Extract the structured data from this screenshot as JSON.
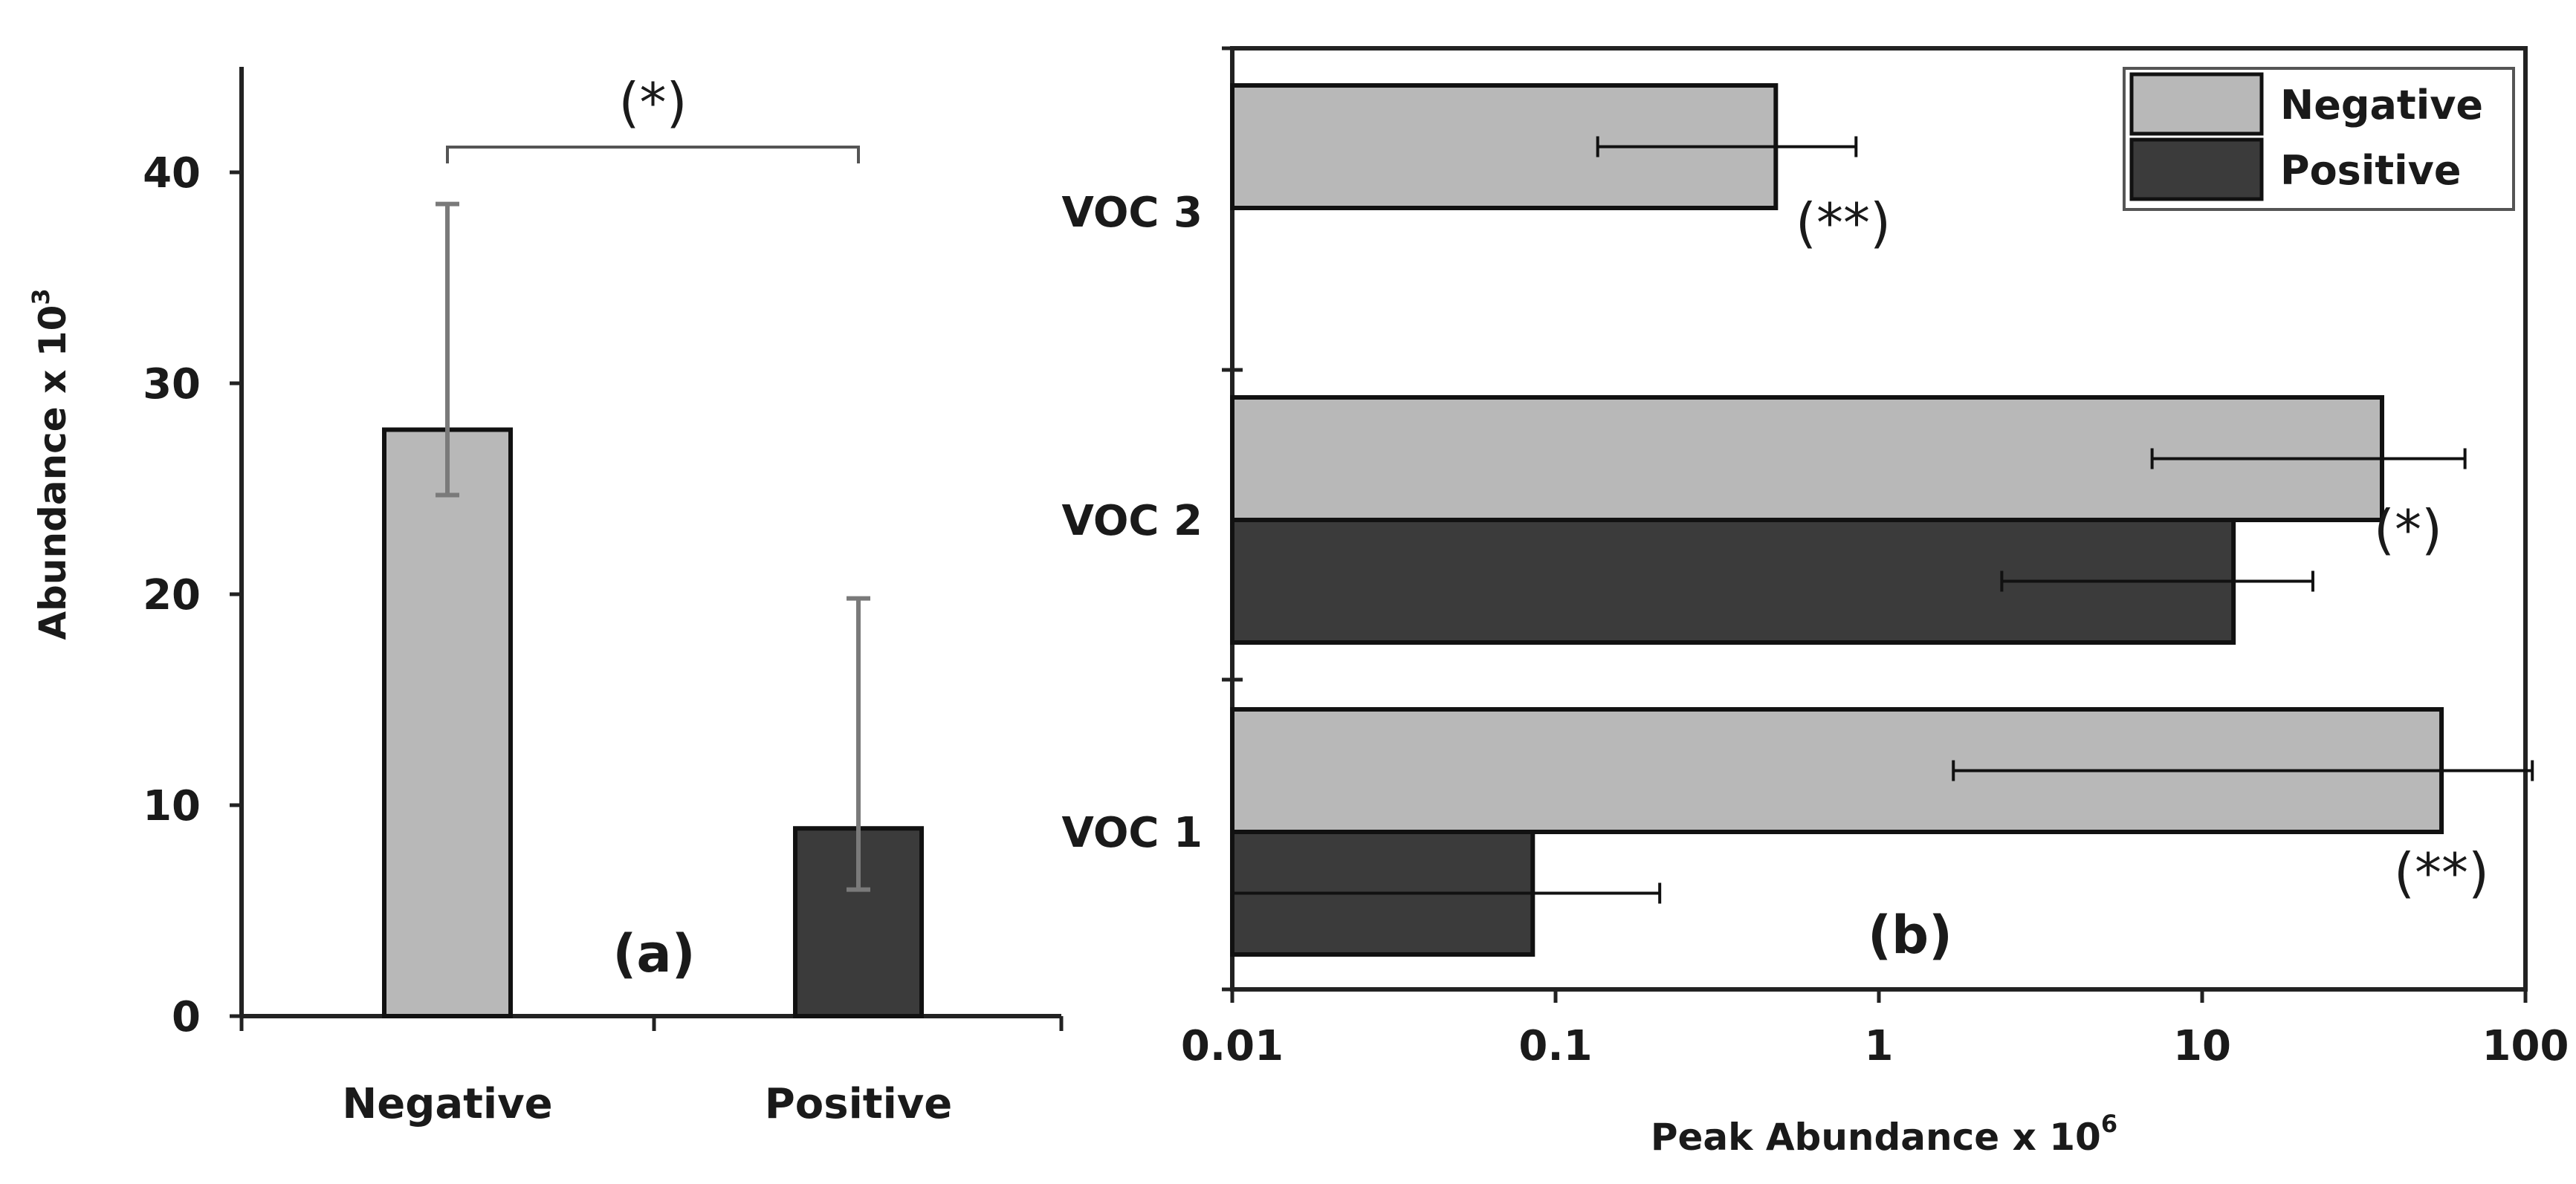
{
  "chart_data": [
    {
      "type": "bar",
      "panel_label": "(a)",
      "categories": [
        "Negative",
        "Positive"
      ],
      "values": [
        27.8,
        8.9
      ],
      "error_low": [
        24.7,
        6.0
      ],
      "error_high": [
        38.5,
        19.8
      ],
      "colors": [
        "#b8b8b8",
        "#3b3b3b"
      ],
      "ylabel": "Abundance x 10",
      "ylabel_exp": "3",
      "ylim": [
        0,
        45
      ],
      "yticks": [
        "0",
        "10",
        "20",
        "30",
        "40"
      ],
      "significance": {
        "label": "(*)",
        "between": [
          "Negative",
          "Positive"
        ]
      },
      "grid": false
    },
    {
      "type": "bar",
      "orientation": "horizontal",
      "panel_label": "(b)",
      "xscale": "log",
      "xlim": [
        0.01,
        100
      ],
      "xticks": [
        "0.01",
        "0.1",
        "1",
        "10",
        "100"
      ],
      "xlabel": "Peak Abundance x 10",
      "xlabel_exp": "6",
      "categories": [
        "VOC 3",
        "VOC 2",
        "VOC 1"
      ],
      "series": [
        {
          "name": "Negative",
          "color": "#b8b8b8",
          "values": [
            0.48,
            36,
            55
          ],
          "error_low": [
            0.135,
            7,
            1.7
          ],
          "error_high": [
            0.85,
            65,
            105
          ],
          "significance": [
            "(**)",
            "(*)",
            "(**)"
          ]
        },
        {
          "name": "Positive",
          "color": "#3b3b3b",
          "values": [
            null,
            12.5,
            0.085
          ],
          "error_low": [
            null,
            2.4,
            0.01
          ],
          "error_high": [
            null,
            22,
            0.21
          ]
        }
      ],
      "legend": {
        "position": "top-right",
        "entries": [
          "Negative",
          "Positive"
        ]
      },
      "grid": false
    }
  ]
}
